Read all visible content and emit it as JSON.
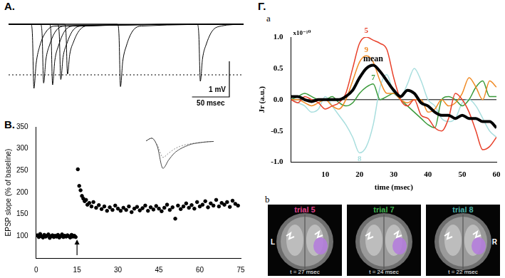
{
  "chart_data": [
    {
      "type": "line",
      "panel_label": "A.",
      "tick_labels": false,
      "grid": false,
      "color": "#000000",
      "xlim": [
        0,
        315
      ],
      "ylim": [
        -2.6,
        0.4
      ],
      "reference_line": -1.42,
      "scale_bar": {
        "x_length": 50,
        "x_label": "50 msec",
        "y_length": 1,
        "y_label": "1 mV"
      },
      "series": [
        {
          "x": [
            0,
            30,
            32,
            34,
            37,
            42,
            50,
            62,
            315
          ],
          "values": [
            0,
            0,
            -0.3,
            -1.8,
            -1.1,
            -0.6,
            -0.22,
            -0.05,
            0
          ]
        },
        {
          "x": [
            0,
            43,
            45,
            47,
            50,
            55,
            63,
            75,
            315
          ],
          "values": [
            0,
            0,
            -0.3,
            -1.65,
            -1.0,
            -0.58,
            -0.2,
            -0.05,
            0
          ]
        },
        {
          "x": [
            0,
            55,
            57,
            59,
            62,
            67,
            75,
            87,
            315
          ],
          "values": [
            0,
            0,
            -0.3,
            -1.7,
            -1.02,
            -0.6,
            -0.2,
            -0.05,
            0
          ]
        },
        {
          "x": [
            0,
            66,
            68,
            70,
            73,
            78,
            86,
            98,
            315
          ],
          "values": [
            0,
            0,
            -0.3,
            -1.55,
            -0.93,
            -0.55,
            -0.18,
            -0.05,
            0
          ]
        },
        {
          "x": [
            0,
            75,
            77,
            79,
            82,
            87,
            95,
            107,
            315
          ],
          "values": [
            0,
            0,
            -0.25,
            -1.4,
            -0.85,
            -0.5,
            -0.17,
            -0.04,
            0
          ]
        },
        {
          "x": [
            0,
            146,
            148,
            150,
            153,
            158,
            166,
            178,
            315
          ],
          "values": [
            0,
            0,
            -0.3,
            -1.75,
            -1.05,
            -0.6,
            -0.2,
            -0.05,
            0
          ]
        },
        {
          "x": [
            0,
            253,
            255,
            257,
            260,
            265,
            273,
            285,
            315
          ],
          "values": [
            0,
            0,
            -0.3,
            -1.6,
            -0.96,
            -0.56,
            -0.19,
            -0.05,
            0
          ]
        }
      ]
    },
    {
      "type": "scatter",
      "panel_label": "B.",
      "y_label": "EPSP slope (% of baseline)",
      "xlim": [
        0,
        75
      ],
      "xticks": [
        0,
        15,
        30,
        45,
        60,
        75
      ],
      "ylim": [
        50,
        350
      ],
      "yticks": [
        100,
        150,
        200,
        250,
        300,
        350
      ],
      "grid": false,
      "color": "#000000",
      "marker": "circle",
      "arrow_x": 15,
      "x": [
        0.5,
        1,
        1.5,
        2,
        2.5,
        3,
        3.5,
        4,
        4.5,
        5,
        5.5,
        6,
        6.5,
        7,
        7.5,
        8,
        8.5,
        9,
        9.5,
        10,
        10.5,
        11,
        11.5,
        12,
        12.5,
        13,
        13.5,
        14,
        14.5,
        15.3,
        15.8,
        16.3,
        16.8,
        17.3,
        17.8,
        18.3,
        18.8,
        19.5,
        20.3,
        21,
        22,
        23,
        24,
        25,
        26,
        27,
        28,
        29,
        30,
        31,
        32,
        33,
        34,
        35,
        36,
        37,
        38,
        39,
        40,
        41,
        42,
        43,
        44,
        45,
        46,
        47,
        48,
        49,
        50,
        51,
        52,
        53,
        54,
        55,
        56,
        57,
        58,
        59,
        60,
        61,
        62,
        63,
        64,
        65,
        66,
        67,
        68,
        69,
        70,
        71,
        72,
        73,
        74
      ],
      "values": [
        102,
        98,
        105,
        100,
        97,
        103,
        99,
        101,
        104,
        96,
        100,
        102,
        98,
        101,
        99,
        103,
        97,
        100,
        104,
        98,
        101,
        99,
        102,
        100,
        97,
        103,
        99,
        101,
        98,
        253,
        215,
        205,
        192,
        186,
        180,
        183,
        172,
        176,
        168,
        178,
        165,
        171,
        162,
        168,
        158,
        166,
        160,
        170,
        163,
        158,
        165,
        160,
        168,
        155,
        163,
        167,
        159,
        164,
        170,
        158,
        166,
        161,
        169,
        163,
        157,
        165,
        172,
        160,
        166,
        140,
        170,
        162,
        168,
        175,
        165,
        171,
        163,
        178,
        168,
        172,
        180,
        166,
        175,
        170,
        183,
        168,
        176,
        172,
        178,
        167,
        181,
        174,
        170
      ],
      "inset": {
        "type": "line",
        "tick_labels": false,
        "xlim": [
          0,
          12
        ],
        "ylim": [
          -1.1,
          0.2
        ],
        "x": [
          0,
          1,
          2,
          3,
          4,
          5,
          6,
          7,
          8,
          9,
          10,
          11,
          12
        ],
        "series": [
          {
            "color": "#444444",
            "line_style": "solid",
            "values": [
              0,
              0.1,
              -0.2,
              -1.0,
              -0.7,
              -0.45,
              -0.3,
              -0.2,
              -0.12,
              -0.08,
              -0.05,
              -0.03,
              -0.02
            ]
          },
          {
            "color": "#888888",
            "line_style": "dotted",
            "values": [
              0,
              0.1,
              -0.15,
              -0.6,
              -0.45,
              -0.3,
              -0.2,
              -0.14,
              -0.1,
              -0.07,
              -0.05,
              -0.03,
              -0.02
            ]
          }
        ]
      }
    },
    {
      "type": "line",
      "group_label": "Γ.",
      "panel_label": "a",
      "x_label": "time (msec)",
      "y_label": "Jr (a.u.)",
      "y_multiplier": "x10⁻¹⁰",
      "xlim": [
        0,
        60
      ],
      "xticks": [
        10,
        20,
        30,
        40,
        50,
        60
      ],
      "ylim": [
        -1,
        1
      ],
      "yticks": [
        {
          "value": -1,
          "label": "-1.0"
        },
        {
          "value": -0.5,
          "label": "-0.5"
        },
        {
          "value": 0,
          "label": "0.0"
        },
        {
          "value": 0.5,
          "label": "0.5"
        },
        {
          "value": 1,
          "label": "1.0"
        }
      ],
      "grid": false,
      "reference_line": 0,
      "x": [
        0,
        2,
        4,
        6,
        8,
        10,
        12,
        14,
        16,
        18,
        20,
        22,
        24,
        26,
        28,
        30,
        32,
        34,
        36,
        38,
        40,
        42,
        44,
        46,
        48,
        50,
        52,
        54,
        56,
        58,
        60
      ],
      "series": [
        {
          "name": "5",
          "color": "#e8402a",
          "line_style": "solid",
          "label_x": 22,
          "values": [
            0,
            -0.05,
            0.05,
            0,
            -0.05,
            -0.15,
            -0.1,
            -0.05,
            0.1,
            0.5,
            0.9,
            1,
            0.95,
            0.9,
            0.8,
            0.35,
            0,
            -0.1,
            0,
            -0.25,
            -0.3,
            -0.45,
            -0.5,
            -0.3,
            0.1,
            0,
            -0.2,
            -0.5,
            -0.8,
            -0.75,
            -0.6
          ]
        },
        {
          "name": "9",
          "color": "#f08a24",
          "line_style": "solid",
          "label_x": 22,
          "values": [
            0,
            0,
            -0.05,
            -0.1,
            -0.05,
            0,
            -0.1,
            -0.15,
            0,
            0.3,
            0.6,
            0.7,
            0.6,
            0.3,
            0.1,
            0.1,
            0,
            -0.05,
            0,
            0,
            -0.2,
            -0.15,
            0,
            -0.1,
            -0.05,
            0.1,
            0.35,
            0.2,
            0,
            0.3,
            0.2
          ]
        },
        {
          "name": "7",
          "color": "#3a9a3a",
          "line_style": "solid",
          "label_x": 24,
          "values": [
            0,
            0.05,
            0.1,
            0.05,
            0,
            0,
            0.05,
            -0.05,
            -0.1,
            -0.05,
            0.1,
            0.2,
            0.25,
            0,
            0.05,
            0.1,
            0,
            -0.1,
            -0.2,
            -0.3,
            -0.4,
            -0.45,
            0,
            0.05,
            0,
            -0.1,
            0,
            0.2,
            0.3,
            0.05,
            0.05
          ]
        },
        {
          "name": "8",
          "color": "#a8dede",
          "line_style": "solid",
          "label_x": 20,
          "values": [
            0,
            -0.05,
            -0.1,
            -0.2,
            -0.15,
            0.05,
            -0.1,
            -0.25,
            -0.4,
            -0.6,
            -0.85,
            -0.75,
            -0.4,
            0.2,
            0.4,
            0.1,
            0.05,
            0.25,
            0.5,
            0.3,
            0,
            -0.1,
            -0.3,
            -0.35,
            -0.3,
            -0.05,
            0,
            -0.1,
            -0.3,
            -0.5,
            -0.6
          ]
        },
        {
          "name": "mean",
          "color": "#000000",
          "line_style": "thick",
          "label_x": 24,
          "values": [
            0.05,
            0.05,
            0,
            -0.03,
            0,
            0,
            0,
            0,
            0.05,
            0.15,
            0.35,
            0.5,
            0.55,
            0.45,
            0.3,
            0.15,
            0.05,
            0.15,
            0.1,
            -0.05,
            -0.1,
            -0.2,
            -0.25,
            -0.25,
            -0.3,
            -0.25,
            -0.3,
            -0.3,
            -0.35,
            -0.35,
            -0.45
          ]
        }
      ]
    }
  ],
  "brain_maps": {
    "panel_label": "b",
    "left_label": "L",
    "right_label": "R",
    "images": [
      {
        "title": "trial 5",
        "color": "#e0428a",
        "time_label": "t = 27 msec"
      },
      {
        "title": "trial 7",
        "color": "#3fb04f",
        "time_label": "t = 24 msec"
      },
      {
        "title": "trial 8",
        "color": "#4ab0a8",
        "time_label": "t = 22 msec"
      }
    ]
  }
}
